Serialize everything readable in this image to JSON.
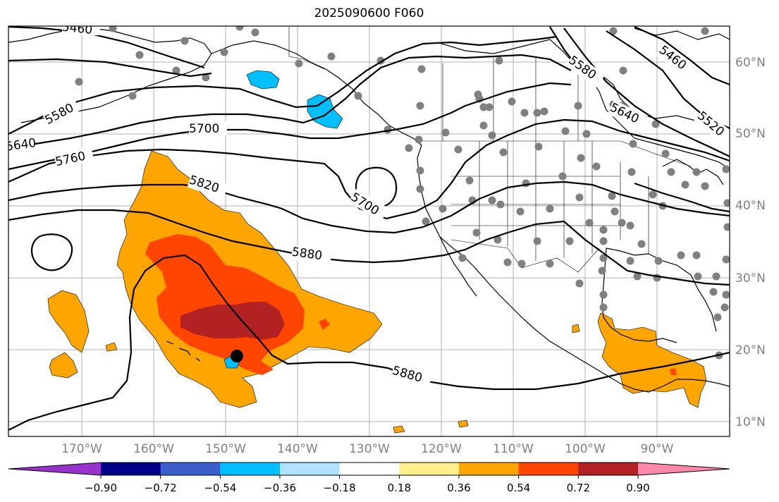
{
  "title": "2025090600 F060",
  "lon_ticks": [
    "170°W",
    "160°W",
    "150°W",
    "140°W",
    "130°W",
    "120°W",
    "110°W",
    "100°W",
    "90°W"
  ],
  "lat_ticks": [
    "60°N",
    "50°N",
    "40°N",
    "30°N",
    "20°N",
    "10°N"
  ],
  "contour_labels": [
    "5460",
    "5580",
    "5640",
    "5700",
    "5760",
    "5820",
    "5880",
    "5700",
    "5880",
    "5580",
    "5640",
    "5460",
    "5520"
  ],
  "colorbar": {
    "ticks": [
      "−0.90",
      "−0.72",
      "−0.54",
      "−0.36",
      "−0.18",
      "0.18",
      "0.36",
      "0.54",
      "0.72",
      "0.90"
    ],
    "colors": [
      "#9932cc",
      "#00008b",
      "#3a5fcd",
      "#00bfff",
      "#b0e2ff",
      "#ffffff",
      "#ffec8b",
      "#ffa500",
      "#ff4500",
      "#b22222",
      "#ff88aa"
    ]
  },
  "colors": {
    "orange": "#ffa500",
    "red_orange": "#ff4500",
    "dark_red": "#b22222",
    "light_blue": "#00bfff",
    "station_dot": "#808080",
    "grid": "#b0b0b0"
  }
}
